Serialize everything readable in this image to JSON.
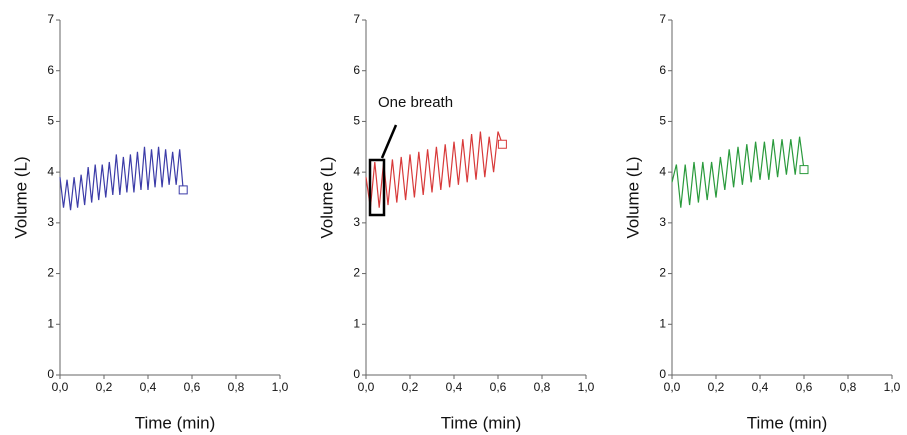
{
  "chart_data": [
    {
      "type": "line",
      "ylabel": "Volume (L)",
      "xlabel": "Time (min)",
      "xlim": [
        0,
        1.0
      ],
      "ylim": [
        0,
        7
      ],
      "xticks": [
        {
          "value": 0,
          "label": "0,0"
        },
        {
          "value": 0.2,
          "label": "0,2"
        },
        {
          "value": 0.4,
          "label": "0,4"
        },
        {
          "value": 0.6,
          "label": "0,6"
        },
        {
          "value": 0.8,
          "label": "0,8"
        },
        {
          "value": 1.0,
          "label": "1,0"
        }
      ],
      "yticks": [
        0,
        1,
        2,
        3,
        4,
        5,
        6,
        7
      ],
      "x": [
        0,
        0.016,
        0.032,
        0.048,
        0.064,
        0.08,
        0.096,
        0.112,
        0.128,
        0.144,
        0.16,
        0.176,
        0.192,
        0.208,
        0.224,
        0.24,
        0.256,
        0.272,
        0.288,
        0.304,
        0.32,
        0.336,
        0.352,
        0.368,
        0.384,
        0.4,
        0.416,
        0.432,
        0.448,
        0.464,
        0.48,
        0.496,
        0.512,
        0.528,
        0.544,
        0.56
      ],
      "series": [
        {
          "color": "#3c3ca8",
          "values": [
            3.9,
            3.3,
            3.85,
            3.25,
            3.9,
            3.3,
            3.95,
            3.35,
            4.1,
            3.4,
            4.15,
            3.45,
            4.15,
            3.5,
            4.2,
            3.55,
            4.35,
            3.55,
            4.3,
            3.6,
            4.35,
            3.6,
            4.4,
            3.65,
            4.5,
            3.65,
            4.45,
            3.7,
            4.5,
            3.7,
            4.45,
            3.75,
            4.4,
            3.75,
            4.45,
            3.65
          ]
        }
      ]
    },
    {
      "type": "line",
      "ylabel": "Volume (L)",
      "xlabel": "Time (min)",
      "annotation": "One breath",
      "xlim": [
        0,
        1.0
      ],
      "ylim": [
        0,
        7
      ],
      "xticks": [
        {
          "value": 0,
          "label": "0,0"
        },
        {
          "value": 0.2,
          "label": "0,2"
        },
        {
          "value": 0.4,
          "label": "0,4"
        },
        {
          "value": 0.6,
          "label": "0,6"
        },
        {
          "value": 0.8,
          "label": "0,8"
        },
        {
          "value": 1.0,
          "label": "1,0"
        }
      ],
      "yticks": [
        0,
        1,
        2,
        3,
        4,
        5,
        6,
        7
      ],
      "x": [
        0,
        0.02,
        0.04,
        0.06,
        0.08,
        0.1,
        0.12,
        0.14,
        0.16,
        0.18,
        0.2,
        0.22,
        0.24,
        0.26,
        0.28,
        0.3,
        0.32,
        0.34,
        0.36,
        0.38,
        0.4,
        0.42,
        0.44,
        0.46,
        0.48,
        0.5,
        0.52,
        0.54,
        0.56,
        0.58,
        0.6,
        0.62
      ],
      "series": [
        {
          "color": "#d83a3a",
          "values": [
            3.9,
            3.3,
            4.2,
            3.3,
            4.2,
            3.35,
            4.25,
            3.4,
            4.3,
            3.45,
            4.35,
            3.5,
            4.4,
            3.55,
            4.45,
            3.6,
            4.5,
            3.65,
            4.55,
            3.7,
            4.6,
            3.75,
            4.65,
            3.8,
            4.75,
            3.85,
            4.8,
            3.9,
            4.7,
            4.0,
            4.8,
            4.55
          ]
        }
      ]
    },
    {
      "type": "line",
      "ylabel": "Volume (L)",
      "xlabel": "Time (min)",
      "xlim": [
        0,
        1.0
      ],
      "ylim": [
        0,
        7
      ],
      "xticks": [
        {
          "value": 0,
          "label": "0,0"
        },
        {
          "value": 0.2,
          "label": "0,2"
        },
        {
          "value": 0.4,
          "label": "0,4"
        },
        {
          "value": 0.6,
          "label": "0,6"
        },
        {
          "value": 0.8,
          "label": "0,8"
        },
        {
          "value": 1.0,
          "label": "1,0"
        }
      ],
      "yticks": [
        0,
        1,
        2,
        3,
        4,
        5,
        6,
        7
      ],
      "x": [
        0,
        0.02,
        0.04,
        0.06,
        0.08,
        0.1,
        0.12,
        0.14,
        0.16,
        0.18,
        0.2,
        0.22,
        0.24,
        0.26,
        0.28,
        0.3,
        0.32,
        0.34,
        0.36,
        0.38,
        0.4,
        0.42,
        0.44,
        0.46,
        0.48,
        0.5,
        0.52,
        0.54,
        0.56,
        0.58,
        0.6
      ],
      "series": [
        {
          "color": "#2a9a3c",
          "values": [
            3.8,
            4.15,
            3.3,
            4.15,
            3.35,
            4.2,
            3.4,
            4.2,
            3.45,
            4.2,
            3.5,
            4.3,
            3.65,
            4.45,
            3.7,
            4.5,
            3.75,
            4.55,
            3.8,
            4.6,
            3.85,
            4.6,
            3.85,
            4.65,
            3.9,
            4.65,
            3.95,
            4.65,
            3.95,
            4.7,
            4.05
          ]
        }
      ]
    }
  ]
}
